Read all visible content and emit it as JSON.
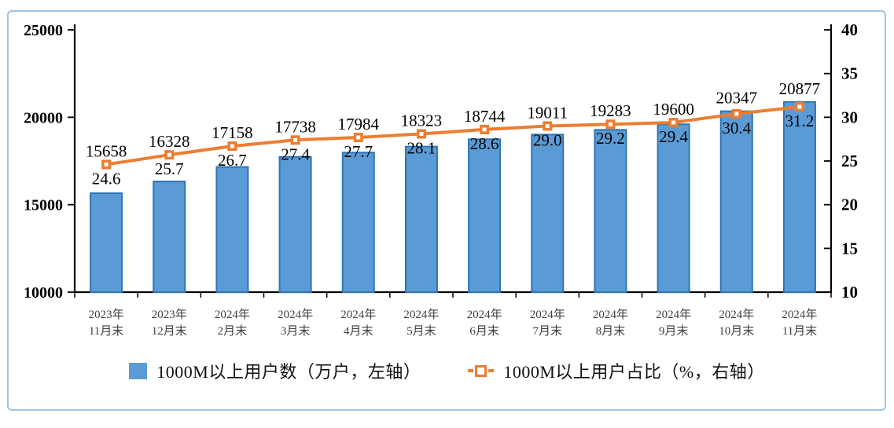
{
  "frame": {
    "border_color": "#9DC3E6",
    "background": "#FFFFFF"
  },
  "chart_data": {
    "type": "bar+line combo",
    "title": "",
    "categories": [
      [
        "2023年",
        "11月末"
      ],
      [
        "2023年",
        "12月末"
      ],
      [
        "2024年",
        "2月末"
      ],
      [
        "2024年",
        "3月末"
      ],
      [
        "2024年",
        "4月末"
      ],
      [
        "2024年",
        "5月末"
      ],
      [
        "2024年",
        "6月末"
      ],
      [
        "2024年",
        "7月末"
      ],
      [
        "2024年",
        "8月末"
      ],
      [
        "2024年",
        "9月末"
      ],
      [
        "2024年",
        "10月末"
      ],
      [
        "2024年",
        "11月末"
      ]
    ],
    "series": [
      {
        "name": "1000M以上用户数（万户，左轴）",
        "type": "bar",
        "axis": "left",
        "values": [
          15658,
          16328,
          17158,
          17738,
          17984,
          18323,
          18744,
          19011,
          19283,
          19600,
          20347,
          20877
        ],
        "fill_color": "#5B9BD5",
        "border_color": "#2E75B6"
      },
      {
        "name": "1000M以上用户占比（%，右轴）",
        "type": "line",
        "axis": "right",
        "values": [
          24.6,
          25.7,
          26.7,
          27.4,
          27.7,
          28.1,
          28.6,
          29.0,
          29.2,
          29.4,
          30.4,
          31.2
        ],
        "value_labels": [
          "24.6",
          "25.7",
          "26.7",
          "27.4",
          "27.7",
          "28.1",
          "28.6",
          "29.0",
          "29.2",
          "29.4",
          "30.4",
          "31.2"
        ],
        "line_color": "#ED7D31",
        "marker": "square-open"
      }
    ],
    "left_axis": {
      "min": 10000,
      "max": 25000,
      "ticks": [
        25000,
        20000,
        15000,
        10000
      ]
    },
    "right_axis": {
      "min": 10,
      "max": 40,
      "ticks": [
        40,
        35,
        30,
        25,
        20,
        15,
        10
      ]
    },
    "grid": false,
    "legend_position": "bottom",
    "label_color": "#000000",
    "axis_color": "#000000",
    "category_label_color": "#3F3F3F"
  }
}
